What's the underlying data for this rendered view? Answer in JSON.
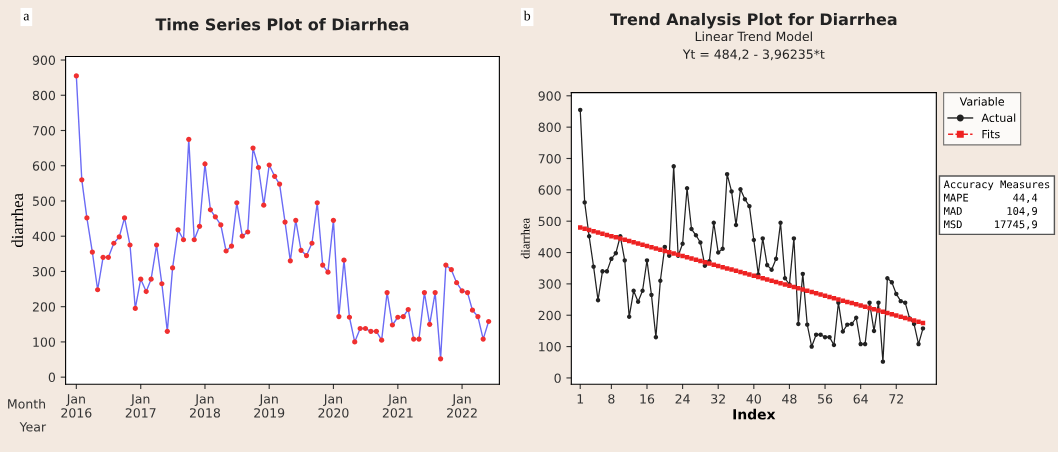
{
  "chart_data": [
    {
      "type": "line",
      "title": "Time Series Plot of Diarrhea",
      "ylabel": "diarrhea",
      "x": [
        "2016-01",
        "2016-02",
        "2016-03",
        "2016-04",
        "2016-05",
        "2016-06",
        "2016-07",
        "2016-08",
        "2016-09",
        "2016-10",
        "2016-11",
        "2016-12",
        "2017-01",
        "2017-02",
        "2017-03",
        "2017-04",
        "2017-05",
        "2017-06",
        "2017-07",
        "2017-08",
        "2017-09",
        "2017-10",
        "2017-11",
        "2017-12",
        "2018-01",
        "2018-02",
        "2018-03",
        "2018-04",
        "2018-05",
        "2018-06",
        "2018-07",
        "2018-08",
        "2018-09",
        "2018-10",
        "2018-11",
        "2018-12",
        "2019-01",
        "2019-02",
        "2019-03",
        "2019-04",
        "2019-05",
        "2019-06",
        "2019-07",
        "2019-08",
        "2019-09",
        "2019-10",
        "2019-11",
        "2019-12",
        "2020-01",
        "2020-02",
        "2020-03",
        "2020-04",
        "2020-05",
        "2020-06",
        "2020-07",
        "2020-08",
        "2020-09",
        "2020-10",
        "2020-11",
        "2020-12",
        "2021-01",
        "2021-02",
        "2021-03",
        "2021-04",
        "2021-05",
        "2021-06",
        "2021-07",
        "2021-08",
        "2021-09",
        "2021-10",
        "2021-11",
        "2021-12",
        "2022-01",
        "2022-02",
        "2022-03",
        "2022-04",
        "2022-05",
        "2022-06"
      ],
      "series": [
        {
          "color": "#6b6bf5",
          "marker": "circle",
          "line_style": "solid",
          "colors": [
            "#f03030",
            "#f03030",
            "#f03030",
            "#f03030",
            "#f03030",
            "#f03030",
            "#f03030",
            "#f03030",
            "#f03030",
            "#f03030",
            "#f03030",
            "#f03030",
            "#f03030",
            "#f03030",
            "#f03030",
            "#f03030",
            "#f03030",
            "#f03030",
            "#f03030",
            "#f03030",
            "#f03030",
            "#f03030",
            "#f03030",
            "#f03030",
            "#f03030",
            "#f03030",
            "#f03030",
            "#f03030",
            "#f03030",
            "#f03030",
            "#f03030",
            "#f03030",
            "#f03030",
            "#f03030",
            "#f03030",
            "#f03030",
            "#f03030",
            "#f03030",
            "#f03030",
            "#f03030",
            "#f03030",
            "#f03030",
            "#f03030",
            "#f03030",
            "#f03030",
            "#f03030",
            "#f03030",
            "#f03030",
            "#f03030",
            "#f03030",
            "#f03030",
            "#f03030",
            "#f03030",
            "#f03030",
            "#f03030",
            "#f03030",
            "#f03030",
            "#f03030",
            "#f03030",
            "#f03030",
            "#f03030",
            "#f03030",
            "#f03030",
            "#f03030",
            "#f03030",
            "#f03030",
            "#f03030",
            "#f03030",
            "#f03030",
            "#f03030",
            "#f03030",
            "#f03030",
            "#f03030",
            "#f03030",
            "#f03030",
            "#f03030",
            "#f03030",
            "#f03030"
          ],
          "values": [
            855,
            560,
            452,
            355,
            248,
            340,
            340,
            380,
            398,
            452,
            375,
            195,
            278,
            243,
            278,
            375,
            265,
            130,
            310,
            418,
            390,
            675,
            390,
            428,
            605,
            475,
            455,
            432,
            358,
            372,
            495,
            400,
            412,
            650,
            595,
            488,
            602,
            570,
            548,
            440,
            330,
            445,
            360,
            345,
            380,
            495,
            318,
            298,
            445,
            172,
            332,
            170,
            100,
            138,
            138,
            130,
            130,
            105,
            240,
            148,
            170,
            172,
            192,
            108,
            108,
            240,
            150,
            240,
            52,
            318,
            305,
            268,
            245,
            240,
            190,
            172,
            108,
            158
          ]
        }
      ],
      "xlim": [
        "2015-11",
        "2022-08"
      ],
      "xticks": [
        {
          "value": "2016-01",
          "label": "Jan\n2016"
        },
        {
          "value": "2017-01",
          "label": "Jan\n2017"
        },
        {
          "value": "2018-01",
          "label": "Jan\n2018"
        },
        {
          "value": "2019-01",
          "label": "Jan\n2019"
        },
        {
          "value": "2020-01",
          "label": "Jan\n2020"
        },
        {
          "value": "2021-01",
          "label": "Jan\n2021"
        },
        {
          "value": "2022-01",
          "label": "Jan\n2022"
        }
      ],
      "ylim": [
        -20,
        910
      ],
      "yticks": [
        0,
        100,
        200,
        300,
        400,
        500,
        600,
        700,
        800,
        900
      ],
      "grid": false,
      "legend": false,
      "annotations": [
        "a",
        "Month",
        "Year"
      ]
    },
    {
      "type": "line",
      "title": "Trend Analysis Plot for Diarrhea",
      "subtitle": "Linear Trend Model\nYt = 484,2 - 3,96235*t",
      "xlabel": "Index",
      "ylabel": "diarrhea",
      "legend_title": "Variable",
      "x": [
        1,
        2,
        3,
        4,
        5,
        6,
        7,
        8,
        9,
        10,
        11,
        12,
        13,
        14,
        15,
        16,
        17,
        18,
        19,
        20,
        21,
        22,
        23,
        24,
        25,
        26,
        27,
        28,
        29,
        30,
        31,
        32,
        33,
        34,
        35,
        36,
        37,
        38,
        39,
        40,
        41,
        42,
        43,
        44,
        45,
        46,
        47,
        48,
        49,
        50,
        51,
        52,
        53,
        54,
        55,
        56,
        57,
        58,
        59,
        60,
        61,
        62,
        63,
        64,
        65,
        66,
        67,
        68,
        69,
        70,
        71,
        72,
        73,
        74,
        75,
        76,
        77,
        78
      ],
      "series": [
        {
          "name": "Actual",
          "color": "#222222",
          "marker": "circle",
          "line_style": "solid",
          "values": [
            855,
            560,
            452,
            355,
            248,
            340,
            340,
            380,
            398,
            452,
            375,
            195,
            278,
            243,
            278,
            375,
            265,
            130,
            310,
            418,
            390,
            675,
            390,
            428,
            605,
            475,
            455,
            432,
            358,
            372,
            495,
            400,
            412,
            650,
            595,
            488,
            602,
            570,
            548,
            440,
            330,
            445,
            360,
            345,
            380,
            495,
            318,
            298,
            445,
            172,
            332,
            170,
            100,
            138,
            138,
            130,
            130,
            105,
            240,
            148,
            170,
            172,
            192,
            108,
            108,
            240,
            150,
            240,
            52,
            318,
            305,
            268,
            245,
            240,
            190,
            172,
            108,
            158
          ]
        },
        {
          "name": "Fits",
          "color": "#ee2222",
          "marker": "square",
          "line_style": "dashed",
          "values": [
            480,
            476,
            472,
            468,
            464,
            460,
            456,
            452,
            449,
            445,
            441,
            437,
            433,
            429,
            425,
            421,
            417,
            413,
            409,
            405,
            401,
            397,
            393,
            389,
            385,
            381,
            377,
            373,
            369,
            365,
            361,
            357,
            353,
            349,
            346,
            342,
            338,
            334,
            330,
            326,
            322,
            318,
            314,
            310,
            306,
            302,
            298,
            294,
            290,
            286,
            282,
            278,
            274,
            270,
            266,
            262,
            258,
            254,
            250,
            246,
            242,
            239,
            235,
            231,
            227,
            223,
            219,
            215,
            211,
            207,
            203,
            199,
            195,
            191,
            187,
            183,
            179,
            175
          ]
        }
      ],
      "xlim": [
        -1,
        81
      ],
      "xticks": [
        1,
        8,
        16,
        24,
        32,
        40,
        48,
        56,
        64,
        72
      ],
      "ylim": [
        -20,
        910
      ],
      "yticks": [
        0,
        100,
        200,
        300,
        400,
        500,
        600,
        700,
        800,
        900
      ],
      "grid": false,
      "legend": "right",
      "annotations": [
        "b",
        "Accuracy Measures",
        "MAPE",
        "44,4",
        "MAD",
        "104,9",
        "MSD",
        "17745,9"
      ]
    }
  ]
}
